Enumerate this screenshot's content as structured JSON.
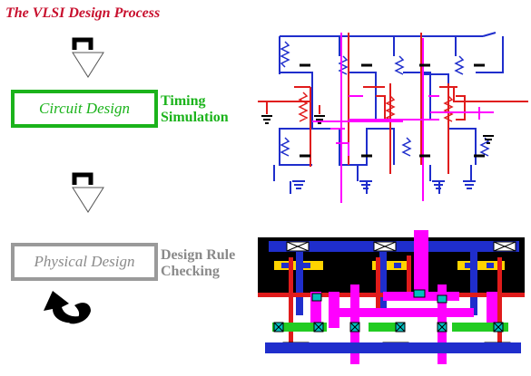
{
  "title": "The VLSI Design Process",
  "stages": [
    {
      "box_label": "Circuit Design",
      "side_label": [
        "Timing",
        "Simulation"
      ],
      "color": "#1bb31b"
    },
    {
      "box_label": "Physical Design",
      "side_label": [
        "Design Rule",
        "Checking"
      ],
      "color": "#8a8a8a"
    }
  ],
  "icons": [
    "down-arrow-icon",
    "down-arrow-icon",
    "iteration-arrow-icon"
  ],
  "figures": [
    "transistor-schematic",
    "layout-stick-diagram"
  ],
  "colors": {
    "title": "#c8102e",
    "schematic_wire": "#1f2ecc",
    "poly": "#e01b1b",
    "metal2": "#ff00ff",
    "contact": "#00bfbf",
    "well": "#000000"
  }
}
